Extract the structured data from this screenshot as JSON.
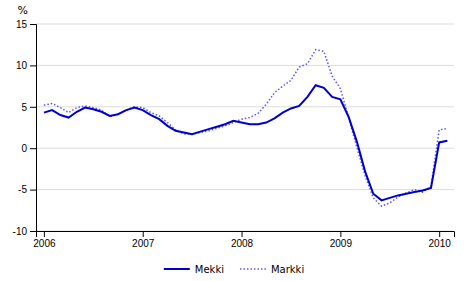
{
  "chart_data": {
    "type": "line",
    "ylabel": "%",
    "x": [
      2006.0,
      2006.083,
      2006.167,
      2006.25,
      2006.333,
      2006.417,
      2006.5,
      2006.583,
      2006.667,
      2006.75,
      2006.833,
      2006.917,
      2007.0,
      2007.083,
      2007.167,
      2007.25,
      2007.333,
      2007.417,
      2007.5,
      2007.583,
      2007.667,
      2007.75,
      2007.833,
      2007.917,
      2008.0,
      2008.083,
      2008.167,
      2008.25,
      2008.333,
      2008.417,
      2008.5,
      2008.583,
      2008.667,
      2008.75,
      2008.833,
      2008.917,
      2009.0,
      2009.083,
      2009.167,
      2009.25,
      2009.333,
      2009.417,
      2009.5,
      2009.583,
      2009.667,
      2009.75,
      2009.833,
      2009.917,
      2010.0,
      2010.083
    ],
    "xlim": [
      2005.92,
      2010.15
    ],
    "xticks": [
      2006,
      2007,
      2008,
      2009,
      2010
    ],
    "ylim": [
      -10,
      15
    ],
    "yticks": [
      -10,
      -5,
      0,
      5,
      10,
      15
    ],
    "grid": true,
    "legend": "bottom",
    "series": [
      {
        "name": "Mekki",
        "color": "#0000CC",
        "line_style": "solid",
        "values": [
          4.3,
          4.6,
          4.0,
          3.7,
          4.4,
          4.9,
          4.7,
          4.4,
          3.9,
          4.1,
          4.6,
          4.9,
          4.6,
          4.0,
          3.5,
          2.7,
          2.1,
          1.9,
          1.7,
          2.0,
          2.3,
          2.6,
          2.9,
          3.3,
          3.1,
          2.9,
          2.9,
          3.1,
          3.6,
          4.3,
          4.8,
          5.1,
          6.2,
          7.6,
          7.3,
          6.2,
          5.9,
          3.8,
          0.8,
          -2.8,
          -5.5,
          -6.3,
          -6.0,
          -5.7,
          -5.5,
          -5.3,
          -5.1,
          -4.8,
          0.7,
          0.9
        ]
      },
      {
        "name": "Markki",
        "color": "#5555FF",
        "line_style": "dotted",
        "values": [
          5.2,
          5.4,
          4.9,
          4.3,
          4.9,
          5.1,
          4.9,
          4.6,
          3.8,
          4.1,
          4.6,
          5.0,
          4.9,
          4.3,
          3.9,
          3.1,
          2.2,
          1.7,
          1.7,
          1.9,
          2.1,
          2.4,
          2.7,
          3.1,
          3.5,
          3.7,
          4.2,
          5.3,
          6.7,
          7.5,
          8.2,
          9.8,
          10.2,
          11.9,
          11.7,
          8.7,
          7.2,
          3.7,
          0.1,
          -3.3,
          -6.0,
          -7.0,
          -6.6,
          -5.9,
          -5.4,
          -5.0,
          -5.3,
          -4.6,
          2.2,
          2.4
        ]
      }
    ]
  }
}
